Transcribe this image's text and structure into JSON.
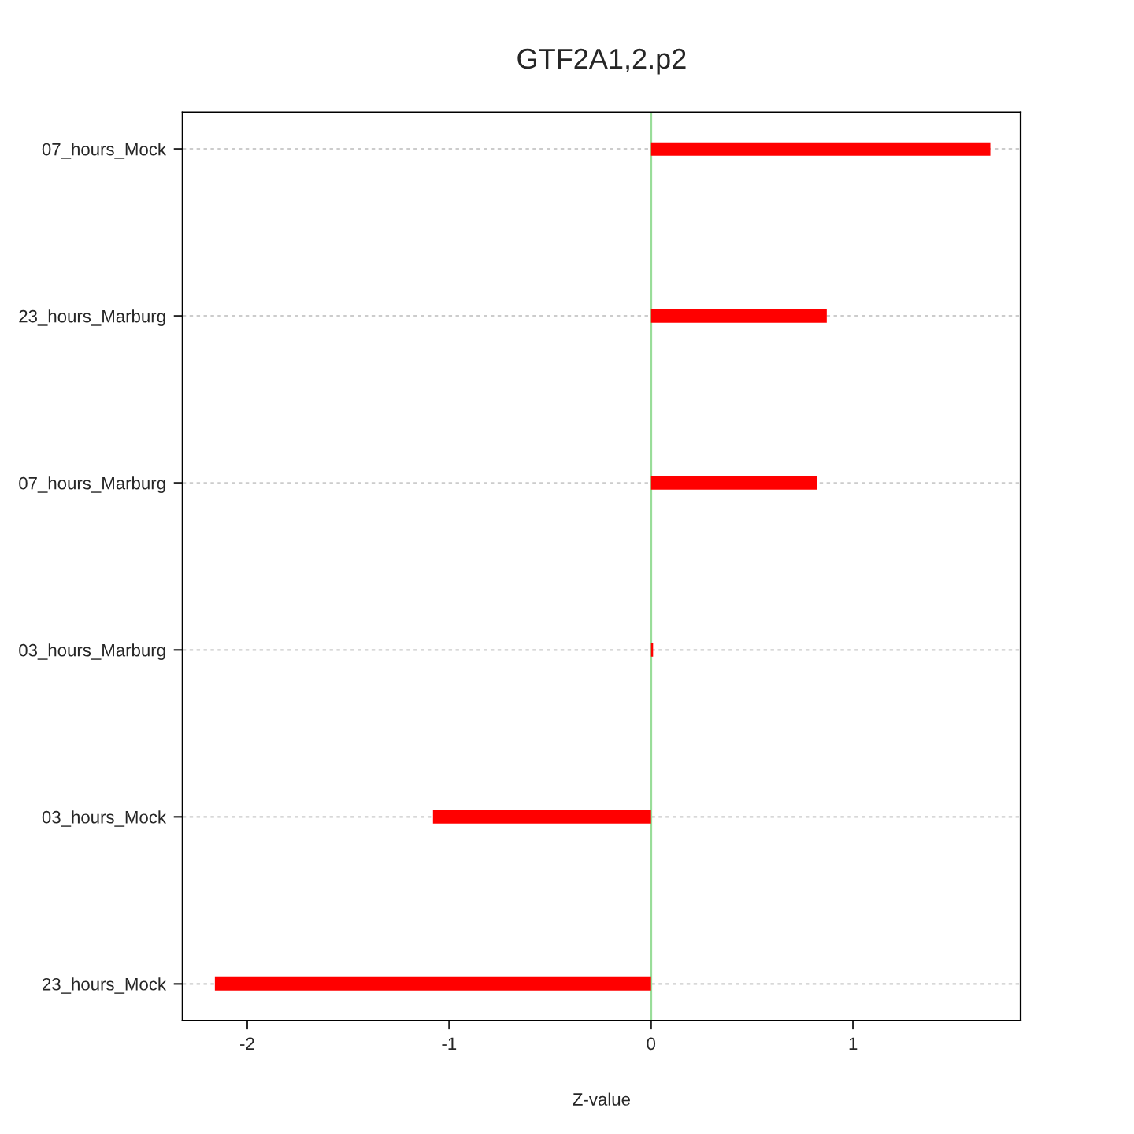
{
  "chart_data": {
    "type": "bar",
    "orientation": "horizontal",
    "title": "GTF2A1,2.p2",
    "xlabel": "Z-value",
    "categories": [
      "07_hours_Mock",
      "23_hours_Marburg",
      "07_hours_Marburg",
      "03_hours_Marburg",
      "03_hours_Mock",
      "23_hours_Mock"
    ],
    "values": [
      1.68,
      0.87,
      0.82,
      0.01,
      -1.08,
      -2.16
    ],
    "color": "#ff0000",
    "xlim": [
      -2.32,
      1.83
    ],
    "xticks": [
      -2,
      -1,
      0,
      1
    ],
    "ref_lines": [
      {
        "axis": "x",
        "value": 0,
        "label": null,
        "color": "#99dd99"
      }
    ],
    "grid": "y"
  }
}
